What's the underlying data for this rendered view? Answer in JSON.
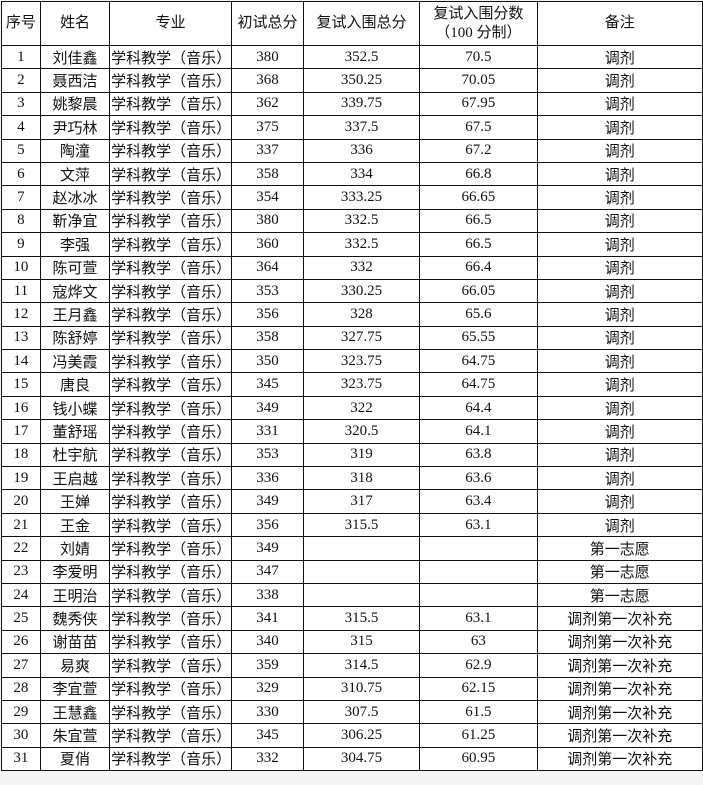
{
  "headers": [
    "序号",
    "姓名",
    "专业",
    "初试总分",
    "复试入围总分",
    "复试入围分数",
    "（100 分制）",
    "备注"
  ],
  "rows": [
    [
      "1",
      "刘佳鑫",
      "学科教学（音乐）",
      "380",
      "352.5",
      "70.5",
      "调剂"
    ],
    [
      "2",
      "聂西洁",
      "学科教学（音乐）",
      "368",
      "350.25",
      "70.05",
      "调剂"
    ],
    [
      "3",
      "姚黎晨",
      "学科教学（音乐）",
      "362",
      "339.75",
      "67.95",
      "调剂"
    ],
    [
      "4",
      "尹巧林",
      "学科教学（音乐）",
      "375",
      "337.5",
      "67.5",
      "调剂"
    ],
    [
      "5",
      "陶潼",
      "学科教学（音乐）",
      "337",
      "336",
      "67.2",
      "调剂"
    ],
    [
      "6",
      "文萍",
      "学科教学（音乐）",
      "358",
      "334",
      "66.8",
      "调剂"
    ],
    [
      "7",
      "赵冰冰",
      "学科教学（音乐）",
      "354",
      "333.25",
      "66.65",
      "调剂"
    ],
    [
      "8",
      "靳净宜",
      "学科教学（音乐）",
      "380",
      "332.5",
      "66.5",
      "调剂"
    ],
    [
      "9",
      "李强",
      "学科教学（音乐）",
      "360",
      "332.5",
      "66.5",
      "调剂"
    ],
    [
      "10",
      "陈可萱",
      "学科教学（音乐）",
      "364",
      "332",
      "66.4",
      "调剂"
    ],
    [
      "11",
      "寇烨文",
      "学科教学（音乐）",
      "353",
      "330.25",
      "66.05",
      "调剂"
    ],
    [
      "12",
      "王月鑫",
      "学科教学（音乐）",
      "356",
      "328",
      "65.6",
      "调剂"
    ],
    [
      "13",
      "陈舒婷",
      "学科教学（音乐）",
      "358",
      "327.75",
      "65.55",
      "调剂"
    ],
    [
      "14",
      "冯美霞",
      "学科教学（音乐）",
      "350",
      "323.75",
      "64.75",
      "调剂"
    ],
    [
      "15",
      "唐良",
      "学科教学（音乐）",
      "345",
      "323.75",
      "64.75",
      "调剂"
    ],
    [
      "16",
      "钱小蝶",
      "学科教学（音乐）",
      "349",
      "322",
      "64.4",
      "调剂"
    ],
    [
      "17",
      "董舒瑶",
      "学科教学（音乐）",
      "331",
      "320.5",
      "64.1",
      "调剂"
    ],
    [
      "18",
      "杜宇航",
      "学科教学（音乐）",
      "353",
      "319",
      "63.8",
      "调剂"
    ],
    [
      "19",
      "王启越",
      "学科教学（音乐）",
      "336",
      "318",
      "63.6",
      "调剂"
    ],
    [
      "20",
      "王婵",
      "学科教学（音乐）",
      "349",
      "317",
      "63.4",
      "调剂"
    ],
    [
      "21",
      "王金",
      "学科教学（音乐）",
      "356",
      "315.5",
      "63.1",
      "调剂"
    ],
    [
      "22",
      "刘婧",
      "学科教学（音乐）",
      "349",
      "",
      "",
      "第一志愿"
    ],
    [
      "23",
      "李爱明",
      "学科教学（音乐）",
      "347",
      "",
      "",
      "第一志愿"
    ],
    [
      "24",
      "王明治",
      "学科教学（音乐）",
      "338",
      "",
      "",
      "第一志愿"
    ],
    [
      "25",
      "魏秀侠",
      "学科教学（音乐）",
      "341",
      "315.5",
      "63.1",
      "调剂第一次补充"
    ],
    [
      "26",
      "谢苗苗",
      "学科教学（音乐）",
      "340",
      "315",
      "63",
      "调剂第一次补充"
    ],
    [
      "27",
      "易爽",
      "学科教学（音乐）",
      "359",
      "314.5",
      "62.9",
      "调剂第一次补充"
    ],
    [
      "28",
      "李宜萱",
      "学科教学（音乐）",
      "329",
      "310.75",
      "62.15",
      "调剂第一次补充"
    ],
    [
      "29",
      "王慧鑫",
      "学科教学（音乐）",
      "330",
      "307.5",
      "61.5",
      "调剂第一次补充"
    ],
    [
      "30",
      "朱宜萱",
      "学科教学（音乐）",
      "345",
      "306.25",
      "61.25",
      "调剂第一次补充"
    ],
    [
      "31",
      "夏俏",
      "学科教学（音乐）",
      "332",
      "304.75",
      "60.95",
      "调剂第一次补充"
    ]
  ]
}
